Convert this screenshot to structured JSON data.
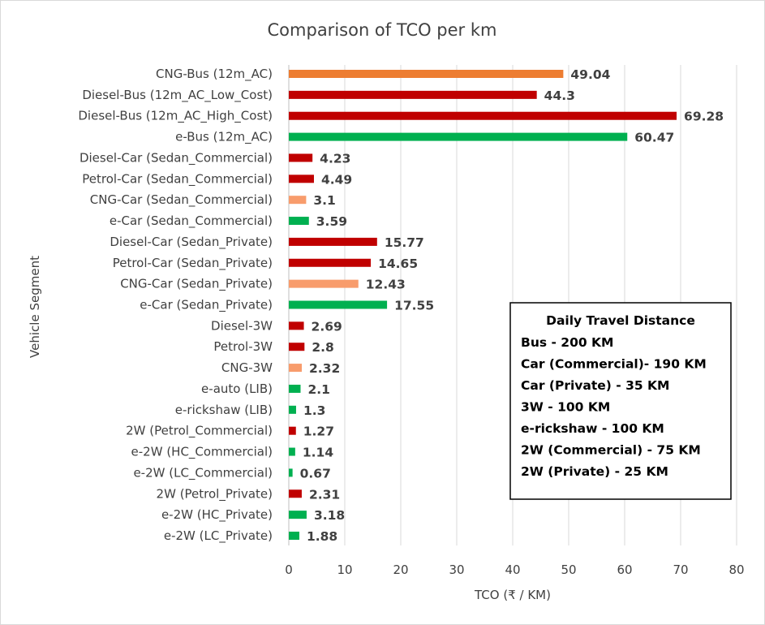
{
  "chart_data": {
    "type": "bar",
    "orientation": "horizontal",
    "title": "Comparison of TCO per km",
    "xlabel": "TCO (₹ / KM)",
    "ylabel": "Vehicle Segment",
    "xlim": [
      0,
      80
    ],
    "xticks": [
      0,
      10,
      20,
      30,
      40,
      50,
      60,
      70,
      80
    ],
    "grid": true,
    "colors": {
      "cng_bus": "#ED7D31",
      "diesel_petrol": "#C00000",
      "cng": "#F89C6C",
      "electric": "#00B050"
    },
    "categories": [
      "CNG-Bus (12m_AC)",
      "Diesel-Bus (12m_AC_Low_Cost)",
      "Diesel-Bus (12m_AC_High_Cost)",
      "e-Bus (12m_AC)",
      "Diesel-Car (Sedan_Commercial)",
      "Petrol-Car (Sedan_Commercial)",
      "CNG-Car (Sedan_Commercial)",
      "e-Car (Sedan_Commercial)",
      "Diesel-Car (Sedan_Private)",
      "Petrol-Car (Sedan_Private)",
      "CNG-Car (Sedan_Private)",
      "e-Car (Sedan_Private)",
      "Diesel-3W",
      "Petrol-3W",
      "CNG-3W",
      "e-auto (LIB)",
      "e-rickshaw (LIB)",
      "2W (Petrol_Commercial)",
      "e-2W (HC_Commercial)",
      "e-2W (LC_Commercial)",
      "2W (Petrol_Private)",
      "e-2W (HC_Private)",
      "e-2W (LC_Private)"
    ],
    "values": [
      49.04,
      44.3,
      69.28,
      60.47,
      4.23,
      4.49,
      3.1,
      3.59,
      15.77,
      14.65,
      12.43,
      17.55,
      2.69,
      2.8,
      2.32,
      2.1,
      1.3,
      1.27,
      1.14,
      0.67,
      2.31,
      3.18,
      1.88
    ],
    "value_labels": [
      "49.04",
      "44.3",
      "69.28",
      "60.47",
      "4.23",
      "4.49",
      "3.1",
      "3.59",
      "15.77",
      "14.65",
      "12.43",
      "17.55",
      "2.69",
      "2.8",
      "2.32",
      "2.1",
      "1.3",
      "1.27",
      "1.14",
      "0.67",
      "2.31",
      "3.18",
      "1.88"
    ],
    "bar_color_keys": [
      "cng_bus",
      "diesel_petrol",
      "diesel_petrol",
      "electric",
      "diesel_petrol",
      "diesel_petrol",
      "cng",
      "electric",
      "diesel_petrol",
      "diesel_petrol",
      "cng",
      "electric",
      "diesel_petrol",
      "diesel_petrol",
      "cng",
      "electric",
      "electric",
      "diesel_petrol",
      "electric",
      "electric",
      "diesel_petrol",
      "electric",
      "electric"
    ],
    "annotation": {
      "title": "Daily Travel Distance",
      "lines": [
        "Bus - 200 KM",
        "Car (Commercial)- 190 KM",
        "Car (Private) - 35 KM",
        "3W - 100 KM",
        "e-rickshaw - 100 KM",
        "2W (Commercial) - 75 KM",
        "2W (Private) - 25 KM"
      ]
    }
  }
}
